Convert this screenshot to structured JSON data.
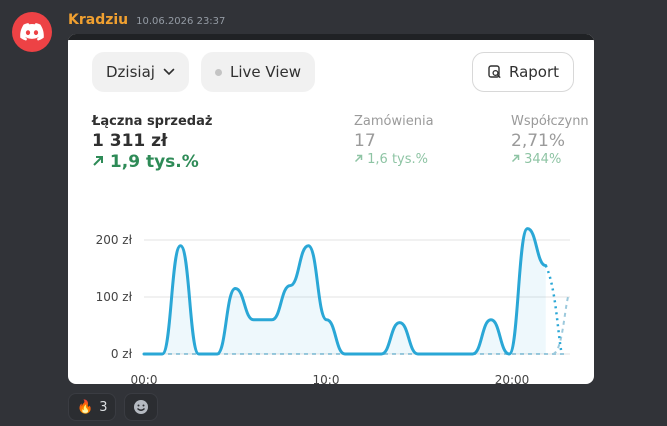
{
  "message": {
    "username": "Kradziu",
    "timestamp": "10.06.2026 23:37"
  },
  "toolbar": {
    "period_label": "Dzisiaj",
    "live_view_label": "Live View",
    "report_label": "Raport"
  },
  "metrics": [
    {
      "label": "Łączna sprzedaż",
      "value": "1 311 zł",
      "change": "1,9 tys.%"
    },
    {
      "label": "Zamówienia",
      "value": "17",
      "change": "1,6 tys.%"
    },
    {
      "label": "Współczynn",
      "value": "2,71%",
      "change": "344%"
    }
  ],
  "chart_data": {
    "type": "line",
    "title": "",
    "xlabel": "",
    "ylabel": "",
    "y_ticks": [
      "200 zł",
      "100 zł",
      "0 zł"
    ],
    "x_ticks": [
      "00:0",
      "10:0",
      "20:00"
    ],
    "ylim": [
      0,
      200
    ],
    "xlim": [
      0,
      23
    ],
    "grid": true,
    "series": [
      {
        "values": [
          [
            0,
            0
          ],
          [
            1,
            0
          ],
          [
            2,
            190
          ],
          [
            3,
            0
          ],
          [
            4,
            0
          ],
          [
            5,
            115
          ],
          [
            6,
            60
          ],
          [
            7,
            60
          ],
          [
            8,
            120
          ],
          [
            9,
            190
          ],
          [
            10,
            60
          ],
          [
            11,
            0
          ],
          [
            12,
            0
          ],
          [
            13,
            0
          ],
          [
            14,
            55
          ],
          [
            15,
            0
          ],
          [
            16,
            0
          ],
          [
            17,
            0
          ],
          [
            18,
            0
          ],
          [
            19,
            60
          ],
          [
            20,
            0
          ],
          [
            21,
            220
          ],
          [
            22,
            155
          ]
        ],
        "color": "#2aa7d6"
      }
    ]
  },
  "reactions": [
    {
      "emoji": "🔥",
      "count": "3"
    }
  ],
  "colors": {
    "accent": "#2aa7d6",
    "positive": "#2e8b57",
    "discord_red": "#ed4245"
  }
}
